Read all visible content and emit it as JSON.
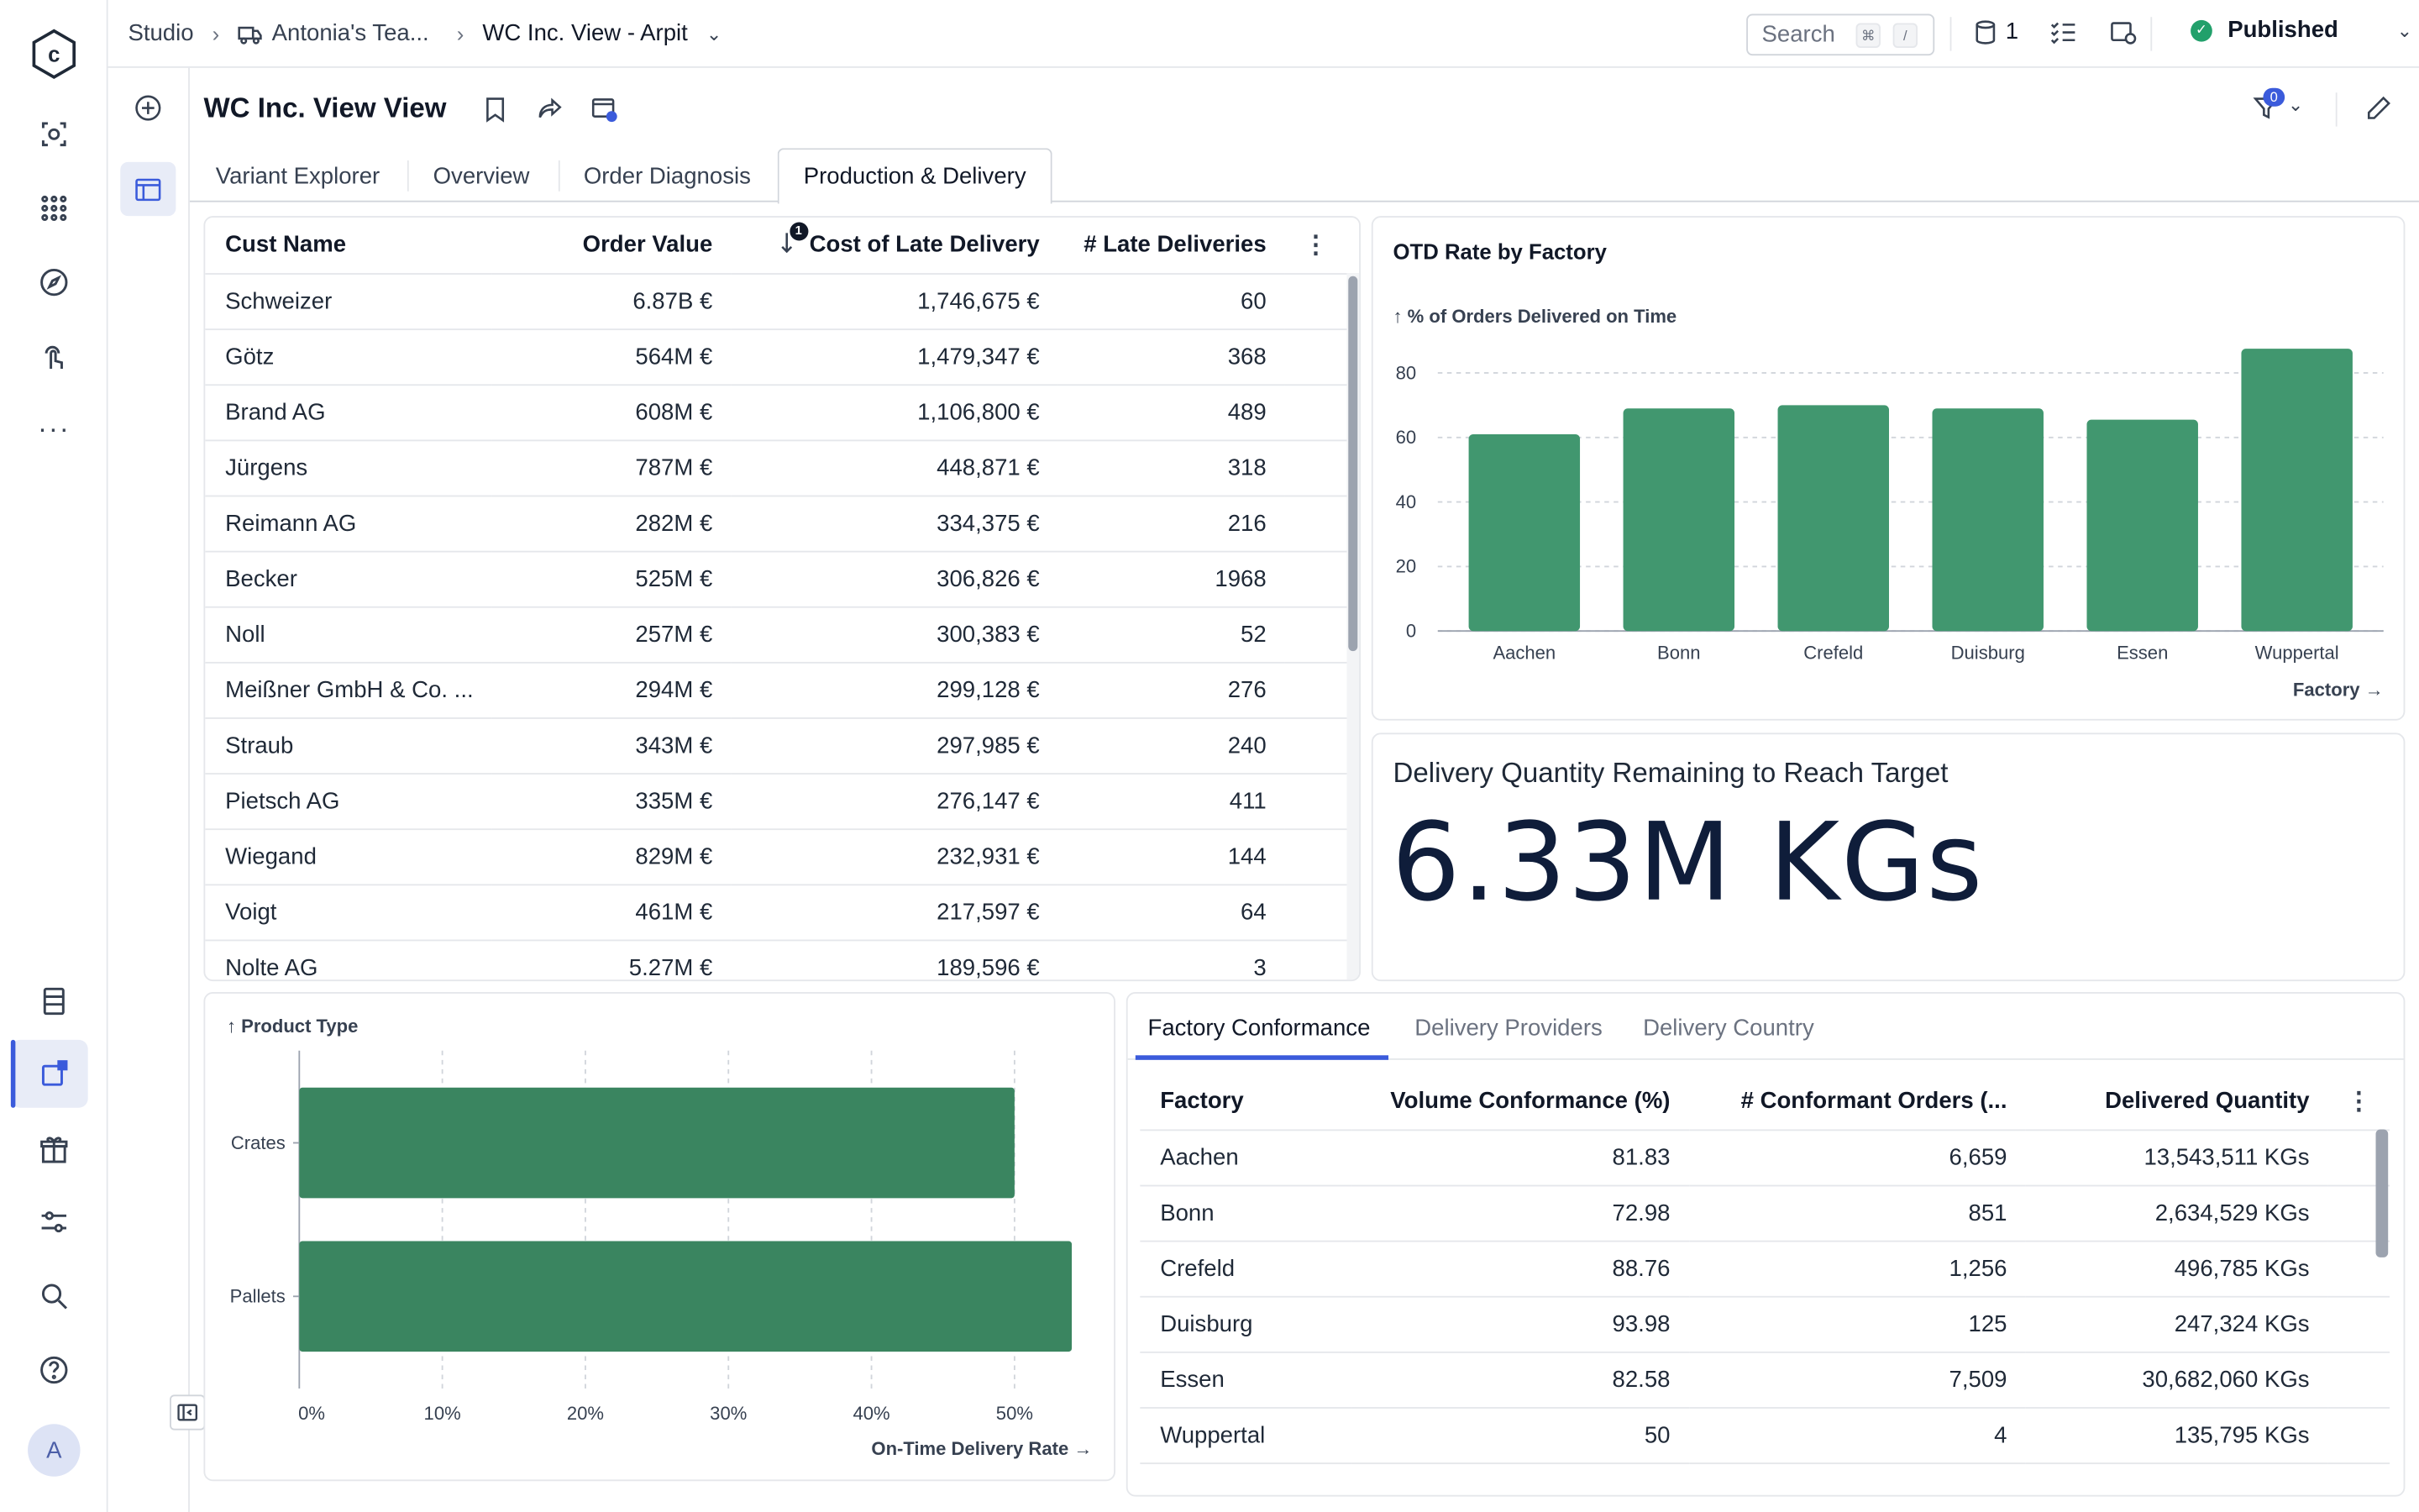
{
  "topbar": {
    "studio": "Studio",
    "team": "Antonia's Tea...",
    "view": "WC Inc. View - Arpit",
    "search_placeholder": "Search",
    "search_kbd1": "⌘",
    "search_kbd2": "/",
    "db_count": "1",
    "status": "Published"
  },
  "page": {
    "title": "WC Inc. View View",
    "filter_badge": "0"
  },
  "tabs": [
    "Variant Explorer",
    "Overview",
    "Order Diagnosis",
    "Production & Delivery"
  ],
  "late_table": {
    "headers": [
      "Cust Name",
      "Order Value",
      "Cost of Late Delivery",
      "# Late Deliveries"
    ],
    "sort_badge": "1",
    "rows": [
      [
        "Schweizer",
        "6.87B €",
        "1,746,675 €",
        "60"
      ],
      [
        "Götz",
        "564M €",
        "1,479,347 €",
        "368"
      ],
      [
        "Brand AG",
        "608M €",
        "1,106,800 €",
        "489"
      ],
      [
        "Jürgens",
        "787M €",
        "448,871 €",
        "318"
      ],
      [
        "Reimann AG",
        "282M €",
        "334,375 €",
        "216"
      ],
      [
        "Becker",
        "525M €",
        "306,826 €",
        "1968"
      ],
      [
        "Noll",
        "257M €",
        "300,383 €",
        "52"
      ],
      [
        "Meißner GmbH & Co. ...",
        "294M €",
        "299,128 €",
        "276"
      ],
      [
        "Straub",
        "343M €",
        "297,985 €",
        "240"
      ],
      [
        "Pietsch AG",
        "335M €",
        "276,147 €",
        "411"
      ],
      [
        "Wiegand",
        "829M €",
        "232,931 €",
        "144"
      ],
      [
        "Voigt",
        "461M €",
        "217,597 €",
        "64"
      ],
      [
        "Nolte AG",
        "5.27M €",
        "189,596 €",
        "3"
      ]
    ]
  },
  "otd_chart": {
    "title": "OTD Rate by Factory",
    "ylabel": "↑ % of Orders Delivered on Time",
    "xlabel": "Factory →"
  },
  "kpi": {
    "title": "Delivery Quantity Remaining to Reach Target",
    "value": "6.33M KGs"
  },
  "product_chart": {
    "ylabel": "↑ Product Type",
    "xlabel": "On-Time Delivery Rate →"
  },
  "conformance": {
    "tabs": [
      "Factory Conformance",
      "Delivery Providers",
      "Delivery Country"
    ],
    "headers": [
      "Factory",
      "Volume Conformance (%)",
      "# Conformant Orders (...",
      "Delivered Quantity"
    ],
    "rows": [
      [
        "Aachen",
        "81.83",
        "6,659",
        "13,543,511 KGs"
      ],
      [
        "Bonn",
        "72.98",
        "851",
        "2,634,529 KGs"
      ],
      [
        "Crefeld",
        "88.76",
        "1,256",
        "496,785 KGs"
      ],
      [
        "Duisburg",
        "93.98",
        "125",
        "247,324 KGs"
      ],
      [
        "Essen",
        "82.58",
        "7,509",
        "30,682,060 KGs"
      ],
      [
        "Wuppertal",
        "50",
        "4",
        "135,795 KGs"
      ]
    ]
  },
  "user": {
    "avatar": "A"
  },
  "colors": {
    "bar": "#41976f",
    "bar_dark": "#3a8560",
    "accent": "#3b5bdb",
    "published": "#22a06b"
  },
  "chart_data": [
    {
      "type": "bar",
      "title": "OTD Rate by Factory",
      "ylabel": "↑ % of Orders Delivered on Time",
      "xlabel": "Factory →",
      "categories": [
        "Aachen",
        "Bonn",
        "Crefeld",
        "Duisburg",
        "Essen",
        "Wuppertal"
      ],
      "values": [
        61,
        69,
        70,
        69,
        65.5,
        87.5
      ],
      "ylim": [
        0,
        88
      ],
      "yticks": [
        0,
        20,
        40,
        60,
        80
      ],
      "grid": true
    },
    {
      "type": "bar",
      "orientation": "horizontal",
      "ylabel": "↑ Product Type",
      "xlabel": "On-Time Delivery Rate →",
      "categories": [
        "Crates",
        "Pallets"
      ],
      "values": [
        50,
        54
      ],
      "xlim": [
        0,
        55
      ],
      "xticks": [
        "0%",
        "10%",
        "20%",
        "30%",
        "40%",
        "50%"
      ],
      "grid": true
    }
  ]
}
